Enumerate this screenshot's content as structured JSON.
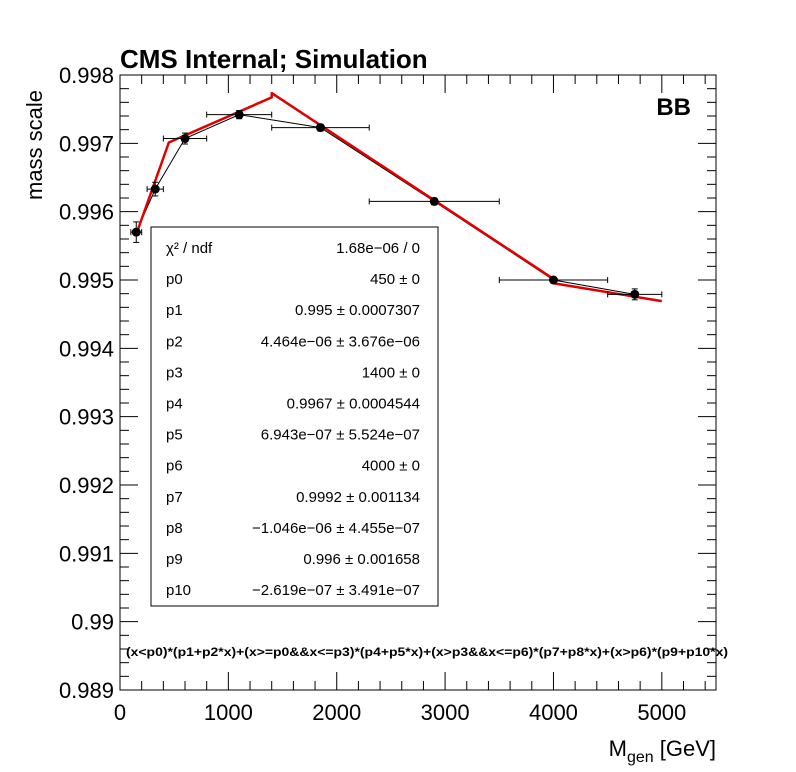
{
  "chart_data": {
    "type": "scatter",
    "title": "CMS Internal; Simulation",
    "category_label": "BB",
    "xlabel_main": "M",
    "xlabel_sub": "gen",
    "xlabel_unit": " [GeV]",
    "ylabel": "mass scale",
    "xlim": [
      0,
      5500
    ],
    "ylim": [
      0.989,
      0.998
    ],
    "x_ticks": [
      0,
      1000,
      2000,
      3000,
      4000,
      5000
    ],
    "x_tick_labels": [
      "0",
      "1000",
      "2000",
      "3000",
      "4000",
      "5000"
    ],
    "y_ticks": [
      0.989,
      0.99,
      0.991,
      0.992,
      0.993,
      0.994,
      0.995,
      0.996,
      0.997,
      0.998
    ],
    "y_tick_labels": [
      "0.989",
      "0.99",
      "0.991",
      "0.992",
      "0.993",
      "0.994",
      "0.995",
      "0.996",
      "0.997",
      "0.998"
    ],
    "grid": false,
    "points": [
      {
        "x": 150,
        "xerr": 50,
        "y": 0.9957,
        "yerr": 0.00015
      },
      {
        "x": 325,
        "xerr": 75,
        "y": 0.99633,
        "yerr": 0.0001
      },
      {
        "x": 600,
        "xerr": 200,
        "y": 0.99707,
        "yerr": 8e-05
      },
      {
        "x": 1100,
        "xerr": 300,
        "y": 0.99742,
        "yerr": 6e-05
      },
      {
        "x": 1850,
        "xerr": 450,
        "y": 0.99723,
        "yerr": 5e-05
      },
      {
        "x": 2900,
        "xerr": 600,
        "y": 0.99615,
        "yerr": 5e-05
      },
      {
        "x": 4000,
        "xerr": 500,
        "y": 0.995,
        "yerr": 4e-05
      },
      {
        "x": 4750,
        "xerr": 250,
        "y": 0.99479,
        "yerr": 8e-05
      }
    ],
    "fit": {
      "color": "#e00000",
      "formula": "(x<p0)*(p1+p2*x)+(x>=p0&&x<=p3)*(p4+p5*x)+(x>p3&&x<=p6)*(p7+p8*x)+(x>p6)*(p9+p10*x)",
      "range": [
        150,
        5000
      ],
      "params": {
        "p0": 450,
        "p1": 0.995,
        "p2": 4.464e-06,
        "p3": 1400,
        "p4": 0.9967,
        "p5": 6.943e-07,
        "p6": 4000,
        "p7": 0.9992,
        "p8": -1.046e-06,
        "p9": 0.996,
        "p10": -2.619e-07
      }
    },
    "stats_box": {
      "header_name": "χ² / ndf",
      "header_value": "1.68e−06 / 0",
      "rows": [
        {
          "name": "p0",
          "value": "450",
          "error": "0"
        },
        {
          "name": "p1",
          "value": "0.995",
          "error": "0.0007307"
        },
        {
          "name": "p2",
          "value": "4.464e−06",
          "error": "3.676e−06"
        },
        {
          "name": "p3",
          "value": "1400",
          "error": "0"
        },
        {
          "name": "p4",
          "value": "0.9967",
          "error": "0.0004544"
        },
        {
          "name": "p5",
          "value": "6.943e−07",
          "error": "5.524e−07"
        },
        {
          "name": "p6",
          "value": "4000",
          "error": "0"
        },
        {
          "name": "p7",
          "value": "0.9992",
          "error": "0.001134"
        },
        {
          "name": "p8",
          "value": "−1.046e−06",
          "error": "4.455e−07"
        },
        {
          "name": "p9",
          "value": "0.996",
          "error": "0.001658"
        },
        {
          "name": "p10",
          "value": "−2.619e−07",
          "error": "3.491e−07"
        }
      ]
    }
  }
}
